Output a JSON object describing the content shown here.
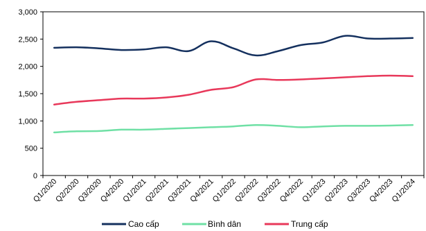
{
  "chart_data": {
    "type": "line",
    "title": "",
    "xlabel": "",
    "ylabel": "",
    "ylim": [
      0,
      3000
    ],
    "yticks": [
      "0",
      "500",
      "1,000",
      "1,500",
      "2,000",
      "2,500",
      "3,000"
    ],
    "ytick_values": [
      0,
      500,
      1000,
      1500,
      2000,
      2500,
      3000
    ],
    "grid": false,
    "legend_position": "bottom",
    "categories": [
      "Q1/2020",
      "Q2/2020",
      "Q3/2020",
      "Q4/2020",
      "Q1/2021",
      "Q2/2021",
      "Q3/2021",
      "Q4/2021",
      "Q1/2022",
      "Q2/2022",
      "Q3/2022",
      "Q4/2022",
      "Q1/2023",
      "Q2/2023",
      "Q3/2023",
      "Q4/2023",
      "Q1/2024"
    ],
    "series": [
      {
        "name": "Cao cấp",
        "color": "#14305e",
        "values": [
          2340,
          2350,
          2330,
          2300,
          2310,
          2350,
          2280,
          2460,
          2330,
          2200,
          2280,
          2390,
          2440,
          2560,
          2510,
          2510,
          2520
        ]
      },
      {
        "name": "Bình dân",
        "color": "#6fe0a5",
        "values": [
          790,
          810,
          815,
          840,
          840,
          855,
          870,
          885,
          900,
          925,
          910,
          885,
          900,
          910,
          910,
          915,
          925
        ]
      },
      {
        "name": "Trung cấp",
        "color": "#e8385a",
        "values": [
          1300,
          1350,
          1380,
          1410,
          1410,
          1430,
          1480,
          1570,
          1620,
          1760,
          1750,
          1760,
          1780,
          1800,
          1820,
          1830,
          1820
        ]
      }
    ]
  }
}
